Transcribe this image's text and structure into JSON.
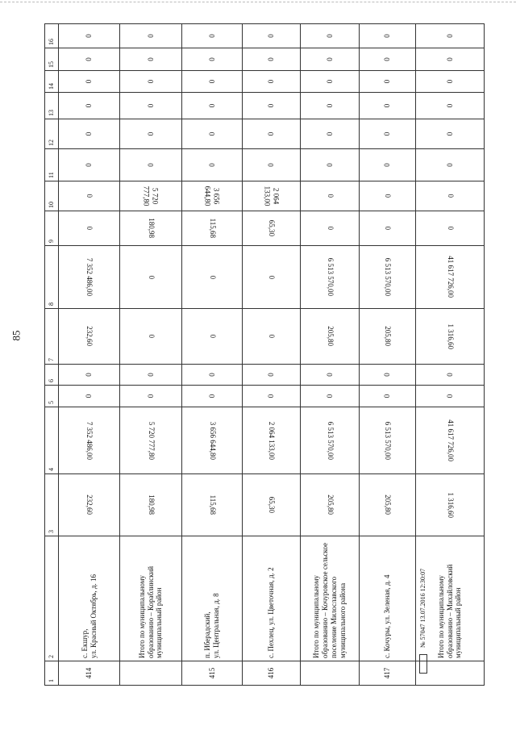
{
  "page_number": "85",
  "stamp": {
    "number": "№ 57047",
    "datetime": "13.07.2016 12:30:07"
  },
  "columns": [
    "1",
    "2",
    "3",
    "4",
    "5",
    "6",
    "7",
    "8",
    "9",
    "10",
    "11",
    "12",
    "13",
    "14",
    "15",
    "16"
  ],
  "rows": [
    [
      "414",
      "с. Екшур,\nул. Красный Октябрь, д. 16",
      "232,60",
      "7 352 486,00",
      "0",
      "0",
      "232,60",
      "7 352 486,00",
      "0",
      "0",
      "0",
      "0",
      "0",
      "0",
      "0",
      "0"
    ],
    [
      "",
      "Итого по муниципальному образованию – Кораблинский муниципальный район",
      "180,98",
      "5 720 777,80",
      "0",
      "0",
      "0",
      "0",
      "180,98",
      "5 720 777,80",
      "0",
      "0",
      "0",
      "0",
      "0",
      "0"
    ],
    [
      "415",
      "п. Иберадский,\nул. Центральная, д. 8",
      "115,68",
      "3 656 644,80",
      "0",
      "0",
      "0",
      "0",
      "115,68",
      "3 656 644,80",
      "0",
      "0",
      "0",
      "0",
      "0",
      "0"
    ],
    [
      "416",
      "с. Пехлец, ул. Цветочная, д. 2",
      "65,30",
      "2 064 133,00",
      "0",
      "0",
      "0",
      "0",
      "65,30",
      "2 064 133,00",
      "0",
      "0",
      "0",
      "0",
      "0",
      "0"
    ],
    [
      "",
      "Итого по муниципальному образованию – Кочуровское сельское поселение Милославского муниципального района",
      "205,80",
      "6 513 570,00",
      "0",
      "0",
      "205,80",
      "6 513 570,00",
      "0",
      "0",
      "0",
      "0",
      "0",
      "0",
      "0",
      "0"
    ],
    [
      "417",
      "с. Кочуры, ул. Зеленая, д. 4",
      "205,80",
      "6 513 570,00",
      "0",
      "0",
      "205,80",
      "6 513 570,00",
      "0",
      "0",
      "0",
      "0",
      "0",
      "0",
      "0",
      "0"
    ],
    [
      "",
      "Итого по муниципальному образованию – Михайловский муниципальный район",
      "1 316,60",
      "41 617 726,00",
      "0",
      "0",
      "1 316,60",
      "41 617 726,00",
      "0",
      "0",
      "0",
      "0",
      "0",
      "0",
      "0",
      "0"
    ]
  ]
}
